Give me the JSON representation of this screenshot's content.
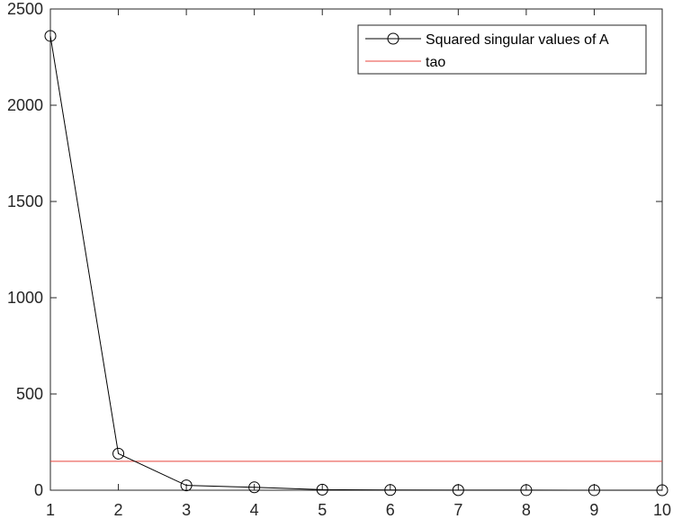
{
  "chart_data": {
    "type": "line",
    "title": "",
    "xlabel": "",
    "ylabel": "",
    "xlim": [
      1,
      10
    ],
    "ylim": [
      0,
      2500
    ],
    "xticks": [
      1,
      2,
      3,
      4,
      5,
      6,
      7,
      8,
      9,
      10
    ],
    "yticks": [
      0,
      500,
      1000,
      1500,
      2000,
      2500
    ],
    "grid": false,
    "legend_position": "top-right",
    "series": [
      {
        "name": "Squared singular values of A",
        "color": "#000000",
        "marker": "circle",
        "x": [
          1,
          2,
          3,
          4,
          5,
          6,
          7,
          8,
          9,
          10
        ],
        "values": [
          2360,
          190,
          25,
          15,
          3,
          1,
          0.5,
          0.3,
          0.2,
          0.1
        ]
      },
      {
        "name": "tao",
        "color": "#e8453c",
        "marker": "none",
        "type": "hline",
        "y": 150
      }
    ]
  }
}
